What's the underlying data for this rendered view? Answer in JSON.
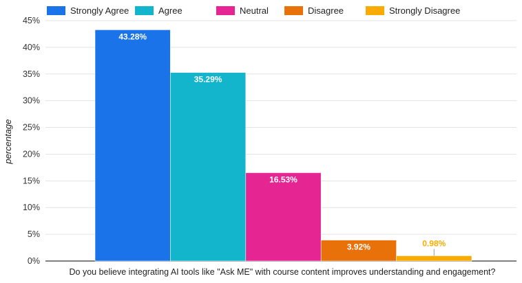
{
  "chart_data": {
    "type": "bar",
    "xlabel": "Do you believe integrating AI tools like \"Ask ME\" with course content improves understanding and engagement?",
    "ylabel": "percentage",
    "ylim": [
      0,
      45
    ],
    "yticks": [
      "0%",
      "5%",
      "10%",
      "15%",
      "20%",
      "25%",
      "30%",
      "35%",
      "40%",
      "45%"
    ],
    "grid": true,
    "legend_position": "top",
    "series": [
      {
        "name": "Strongly Agree",
        "value": 43.28,
        "label": "43.28%",
        "color": "#1a73e8"
      },
      {
        "name": "Agree",
        "value": 35.29,
        "label": "35.29%",
        "color": "#12b5cb"
      },
      {
        "name": "Neutral",
        "value": 16.53,
        "label": "16.53%",
        "color": "#e52592"
      },
      {
        "name": "Disagree",
        "value": 3.92,
        "label": "3.92%",
        "color": "#e8710a"
      },
      {
        "name": "Strongly Disagree",
        "value": 0.98,
        "label": "0.98%",
        "color": "#f9ab00"
      }
    ]
  }
}
